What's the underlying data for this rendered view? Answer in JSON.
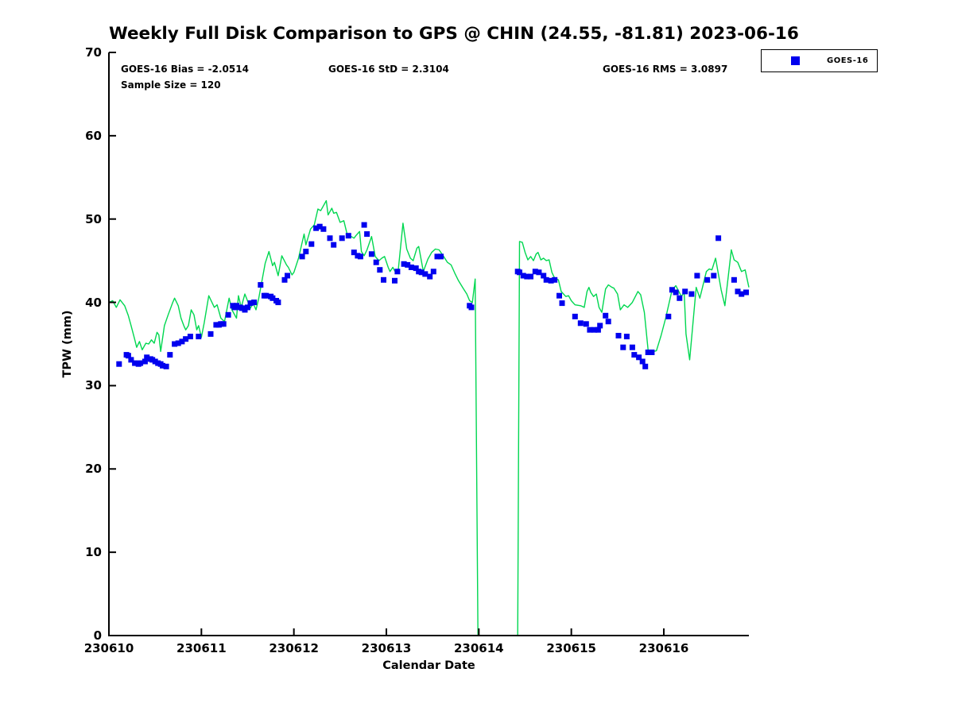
{
  "title": "Weekly Full Disk Comparison to GPS @ CHIN (24.55, -81.81) 2023-06-16",
  "annotations": {
    "bias": "GOES-16 Bias = -2.0514",
    "std": "GOES-16 StD = 2.3104",
    "rms": "GOES-16 RMS = 3.0897",
    "sample_size": "Sample Size = 120"
  },
  "legend": {
    "label": "GOES-16",
    "marker_color": "#0000ee",
    "position": "top-right"
  },
  "colors": {
    "gps_line": "#00d750",
    "goes16_marker": "#0000ee",
    "axis": "#000000",
    "background": "#ffffff"
  },
  "chart_data": {
    "type": "line",
    "title": "Weekly Full Disk Comparison to GPS @ CHIN (24.55, -81.81) 2023-06-16",
    "xlabel": "Calendar Date",
    "ylabel": "TPW (mm)",
    "xlim": [
      0,
      6.92
    ],
    "ylim": [
      0,
      70
    ],
    "grid": false,
    "x_ticks": [
      {
        "t": 0,
        "label": "230610"
      },
      {
        "t": 1,
        "label": "230611"
      },
      {
        "t": 2,
        "label": "230612"
      },
      {
        "t": 3,
        "label": "230613"
      },
      {
        "t": 4,
        "label": "230614"
      },
      {
        "t": 5,
        "label": "230615"
      },
      {
        "t": 6,
        "label": "230616"
      }
    ],
    "y_ticks": [
      0,
      10,
      20,
      30,
      40,
      50,
      60,
      70
    ],
    "x_unit": "days since 230610",
    "series": [
      {
        "name": "GPS",
        "type": "line",
        "color": "#00d750",
        "points": [
          [
            0.0,
            40.0
          ],
          [
            0.04,
            40.2
          ],
          [
            0.08,
            39.4
          ],
          [
            0.12,
            40.3
          ],
          [
            0.17,
            39.6
          ],
          [
            0.21,
            38.4
          ],
          [
            0.24,
            37.2
          ],
          [
            0.28,
            35.5
          ],
          [
            0.3,
            34.6
          ],
          [
            0.33,
            35.3
          ],
          [
            0.36,
            34.3
          ],
          [
            0.4,
            35.1
          ],
          [
            0.43,
            35.0
          ],
          [
            0.46,
            35.5
          ],
          [
            0.49,
            35.1
          ],
          [
            0.52,
            36.4
          ],
          [
            0.54,
            36.1
          ],
          [
            0.56,
            34.1
          ],
          [
            0.6,
            37.2
          ],
          [
            0.64,
            38.5
          ],
          [
            0.69,
            40.0
          ],
          [
            0.71,
            40.5
          ],
          [
            0.75,
            39.6
          ],
          [
            0.78,
            38.1
          ],
          [
            0.81,
            37.2
          ],
          [
            0.83,
            36.7
          ],
          [
            0.86,
            37.2
          ],
          [
            0.89,
            39.1
          ],
          [
            0.92,
            38.5
          ],
          [
            0.95,
            36.7
          ],
          [
            0.97,
            37.2
          ],
          [
            1.0,
            35.8
          ],
          [
            1.03,
            37.5
          ],
          [
            1.08,
            40.8
          ],
          [
            1.14,
            39.4
          ],
          [
            1.17,
            39.7
          ],
          [
            1.21,
            38.1
          ],
          [
            1.25,
            37.7
          ],
          [
            1.3,
            40.5
          ],
          [
            1.33,
            39.1
          ],
          [
            1.38,
            38.1
          ],
          [
            1.4,
            40.8
          ],
          [
            1.43,
            39.4
          ],
          [
            1.47,
            41.0
          ],
          [
            1.53,
            39.3
          ],
          [
            1.56,
            39.9
          ],
          [
            1.59,
            39.1
          ],
          [
            1.62,
            40.5
          ],
          [
            1.69,
            44.7
          ],
          [
            1.73,
            46.1
          ],
          [
            1.77,
            44.4
          ],
          [
            1.79,
            44.8
          ],
          [
            1.83,
            43.2
          ],
          [
            1.87,
            45.6
          ],
          [
            1.92,
            44.5
          ],
          [
            1.94,
            44.2
          ],
          [
            1.98,
            43.3
          ],
          [
            2.0,
            43.6
          ],
          [
            2.05,
            45.3
          ],
          [
            2.11,
            48.2
          ],
          [
            2.13,
            46.9
          ],
          [
            2.18,
            48.8
          ],
          [
            2.22,
            49.3
          ],
          [
            2.26,
            51.2
          ],
          [
            2.29,
            51.0
          ],
          [
            2.35,
            52.2
          ],
          [
            2.37,
            50.5
          ],
          [
            2.41,
            51.3
          ],
          [
            2.43,
            50.7
          ],
          [
            2.46,
            50.8
          ],
          [
            2.5,
            49.6
          ],
          [
            2.54,
            49.8
          ],
          [
            2.58,
            48.0
          ],
          [
            2.62,
            47.9
          ],
          [
            2.65,
            47.7
          ],
          [
            2.67,
            48.0
          ],
          [
            2.71,
            48.5
          ],
          [
            2.73,
            46.1
          ],
          [
            2.76,
            45.6
          ],
          [
            2.79,
            46.3
          ],
          [
            2.84,
            47.9
          ],
          [
            2.88,
            45.5
          ],
          [
            2.92,
            45.0
          ],
          [
            2.95,
            45.3
          ],
          [
            2.98,
            45.5
          ],
          [
            3.02,
            44.2
          ],
          [
            3.04,
            43.7
          ],
          [
            3.07,
            44.2
          ],
          [
            3.1,
            43.6
          ],
          [
            3.13,
            44.0
          ],
          [
            3.18,
            49.5
          ],
          [
            3.22,
            46.4
          ],
          [
            3.26,
            45.3
          ],
          [
            3.29,
            45.0
          ],
          [
            3.33,
            46.5
          ],
          [
            3.35,
            46.7
          ],
          [
            3.4,
            43.7
          ],
          [
            3.45,
            45.2
          ],
          [
            3.49,
            46.0
          ],
          [
            3.53,
            46.4
          ],
          [
            3.57,
            46.3
          ],
          [
            3.62,
            45.5
          ],
          [
            3.66,
            44.8
          ],
          [
            3.7,
            44.5
          ],
          [
            3.74,
            43.5
          ],
          [
            3.78,
            42.6
          ],
          [
            3.83,
            41.7
          ],
          [
            3.87,
            41.0
          ],
          [
            3.9,
            40.2
          ],
          [
            3.93,
            40.0
          ],
          [
            3.96,
            42.8
          ],
          [
            3.99,
            0.0
          ],
          [
            4.42,
            0.0
          ],
          [
            4.44,
            47.3
          ],
          [
            4.47,
            47.2
          ],
          [
            4.5,
            46.0
          ],
          [
            4.53,
            45.1
          ],
          [
            4.56,
            45.5
          ],
          [
            4.59,
            45.0
          ],
          [
            4.62,
            45.8
          ],
          [
            4.64,
            46.0
          ],
          [
            4.67,
            45.1
          ],
          [
            4.7,
            45.3
          ],
          [
            4.73,
            45.0
          ],
          [
            4.76,
            45.1
          ],
          [
            4.79,
            43.6
          ],
          [
            4.82,
            42.9
          ],
          [
            4.86,
            42.7
          ],
          [
            4.89,
            41.3
          ],
          [
            4.94,
            40.7
          ],
          [
            4.97,
            40.8
          ],
          [
            5.0,
            40.2
          ],
          [
            5.04,
            39.7
          ],
          [
            5.1,
            39.6
          ],
          [
            5.14,
            39.4
          ],
          [
            5.17,
            41.3
          ],
          [
            5.19,
            41.8
          ],
          [
            5.21,
            41.2
          ],
          [
            5.24,
            40.7
          ],
          [
            5.27,
            41.0
          ],
          [
            5.3,
            39.4
          ],
          [
            5.33,
            38.8
          ],
          [
            5.37,
            41.6
          ],
          [
            5.4,
            42.1
          ],
          [
            5.44,
            41.8
          ],
          [
            5.46,
            41.7
          ],
          [
            5.5,
            41.0
          ],
          [
            5.53,
            39.1
          ],
          [
            5.57,
            39.7
          ],
          [
            5.61,
            39.4
          ],
          [
            5.66,
            40.0
          ],
          [
            5.72,
            41.3
          ],
          [
            5.75,
            40.9
          ],
          [
            5.79,
            38.8
          ],
          [
            5.83,
            34.3
          ],
          [
            5.86,
            34.0
          ],
          [
            5.92,
            34.2
          ],
          [
            5.97,
            36.0
          ],
          [
            6.02,
            38.1
          ],
          [
            6.09,
            41.5
          ],
          [
            6.13,
            42.0
          ],
          [
            6.19,
            40.7
          ],
          [
            6.22,
            41.2
          ],
          [
            6.24,
            36.2
          ],
          [
            6.28,
            33.1
          ],
          [
            6.35,
            41.8
          ],
          [
            6.39,
            40.5
          ],
          [
            6.46,
            43.7
          ],
          [
            6.49,
            44.0
          ],
          [
            6.52,
            43.9
          ],
          [
            6.56,
            45.3
          ],
          [
            6.62,
            41.5
          ],
          [
            6.66,
            39.6
          ],
          [
            6.73,
            46.3
          ],
          [
            6.76,
            45.1
          ],
          [
            6.8,
            44.8
          ],
          [
            6.84,
            43.7
          ],
          [
            6.88,
            43.9
          ],
          [
            6.92,
            41.8
          ]
        ]
      },
      {
        "name": "GOES-16",
        "type": "scatter",
        "marker": "square",
        "color": "#0000ee",
        "marker_size": 7,
        "points": [
          [
            0.11,
            32.6
          ],
          [
            0.19,
            33.7
          ],
          [
            0.21,
            33.6
          ],
          [
            0.24,
            33.1
          ],
          [
            0.28,
            32.7
          ],
          [
            0.32,
            32.6
          ],
          [
            0.34,
            32.7
          ],
          [
            0.39,
            32.9
          ],
          [
            0.41,
            33.4
          ],
          [
            0.45,
            33.2
          ],
          [
            0.47,
            33.1
          ],
          [
            0.5,
            32.9
          ],
          [
            0.53,
            32.7
          ],
          [
            0.56,
            32.6
          ],
          [
            0.58,
            32.4
          ],
          [
            0.62,
            32.3
          ],
          [
            0.66,
            33.7
          ],
          [
            0.71,
            35.0
          ],
          [
            0.75,
            35.1
          ],
          [
            0.79,
            35.3
          ],
          [
            0.83,
            35.6
          ],
          [
            0.88,
            35.9
          ],
          [
            0.97,
            35.9
          ],
          [
            1.1,
            36.2
          ],
          [
            1.16,
            37.3
          ],
          [
            1.19,
            37.3
          ],
          [
            1.21,
            37.4
          ],
          [
            1.24,
            37.4
          ],
          [
            1.29,
            38.5
          ],
          [
            1.34,
            39.6
          ],
          [
            1.36,
            39.4
          ],
          [
            1.38,
            39.6
          ],
          [
            1.42,
            39.4
          ],
          [
            1.44,
            39.3
          ],
          [
            1.47,
            39.1
          ],
          [
            1.5,
            39.4
          ],
          [
            1.53,
            39.9
          ],
          [
            1.57,
            40.0
          ],
          [
            1.64,
            42.1
          ],
          [
            1.68,
            40.8
          ],
          [
            1.7,
            40.8
          ],
          [
            1.75,
            40.7
          ],
          [
            1.77,
            40.5
          ],
          [
            1.81,
            40.2
          ],
          [
            1.83,
            40.0
          ],
          [
            1.9,
            42.7
          ],
          [
            1.93,
            43.2
          ],
          [
            2.09,
            45.5
          ],
          [
            2.13,
            46.1
          ],
          [
            2.19,
            47.0
          ],
          [
            2.24,
            48.9
          ],
          [
            2.28,
            49.1
          ],
          [
            2.32,
            48.8
          ],
          [
            2.39,
            47.7
          ],
          [
            2.43,
            46.9
          ],
          [
            2.52,
            47.7
          ],
          [
            2.59,
            48.0
          ],
          [
            2.65,
            46.0
          ],
          [
            2.69,
            45.6
          ],
          [
            2.72,
            45.5
          ],
          [
            2.76,
            49.3
          ],
          [
            2.79,
            48.2
          ],
          [
            2.84,
            45.8
          ],
          [
            2.89,
            44.8
          ],
          [
            2.93,
            43.9
          ],
          [
            2.97,
            42.7
          ],
          [
            3.09,
            42.6
          ],
          [
            3.12,
            43.7
          ],
          [
            3.19,
            44.6
          ],
          [
            3.23,
            44.5
          ],
          [
            3.27,
            44.2
          ],
          [
            3.32,
            44.1
          ],
          [
            3.35,
            43.7
          ],
          [
            3.38,
            43.6
          ],
          [
            3.42,
            43.4
          ],
          [
            3.47,
            43.1
          ],
          [
            3.51,
            43.7
          ],
          [
            3.55,
            45.5
          ],
          [
            3.59,
            45.5
          ],
          [
            3.9,
            39.6
          ],
          [
            3.92,
            39.4
          ],
          [
            4.42,
            43.7
          ],
          [
            4.44,
            43.6
          ],
          [
            4.48,
            43.2
          ],
          [
            4.52,
            43.1
          ],
          [
            4.56,
            43.1
          ],
          [
            4.61,
            43.7
          ],
          [
            4.65,
            43.6
          ],
          [
            4.7,
            43.2
          ],
          [
            4.73,
            42.7
          ],
          [
            4.78,
            42.6
          ],
          [
            4.82,
            42.7
          ],
          [
            4.87,
            40.8
          ],
          [
            4.9,
            39.9
          ],
          [
            5.04,
            38.3
          ],
          [
            5.1,
            37.5
          ],
          [
            5.16,
            37.4
          ],
          [
            5.2,
            36.7
          ],
          [
            5.25,
            36.7
          ],
          [
            5.29,
            36.7
          ],
          [
            5.31,
            37.2
          ],
          [
            5.37,
            38.4
          ],
          [
            5.4,
            37.7
          ],
          [
            5.51,
            36.0
          ],
          [
            5.56,
            34.6
          ],
          [
            5.6,
            35.9
          ],
          [
            5.66,
            34.6
          ],
          [
            5.68,
            33.7
          ],
          [
            5.73,
            33.4
          ],
          [
            5.77,
            32.9
          ],
          [
            5.8,
            32.3
          ],
          [
            5.83,
            34.0
          ],
          [
            5.87,
            34.0
          ],
          [
            6.05,
            38.3
          ],
          [
            6.09,
            41.5
          ],
          [
            6.13,
            41.2
          ],
          [
            6.17,
            40.5
          ],
          [
            6.23,
            41.3
          ],
          [
            6.3,
            41.0
          ],
          [
            6.36,
            43.2
          ],
          [
            6.47,
            42.7
          ],
          [
            6.54,
            43.2
          ],
          [
            6.59,
            47.7
          ],
          [
            6.76,
            42.7
          ],
          [
            6.8,
            41.3
          ],
          [
            6.84,
            41.0
          ],
          [
            6.89,
            41.2
          ]
        ]
      }
    ]
  }
}
